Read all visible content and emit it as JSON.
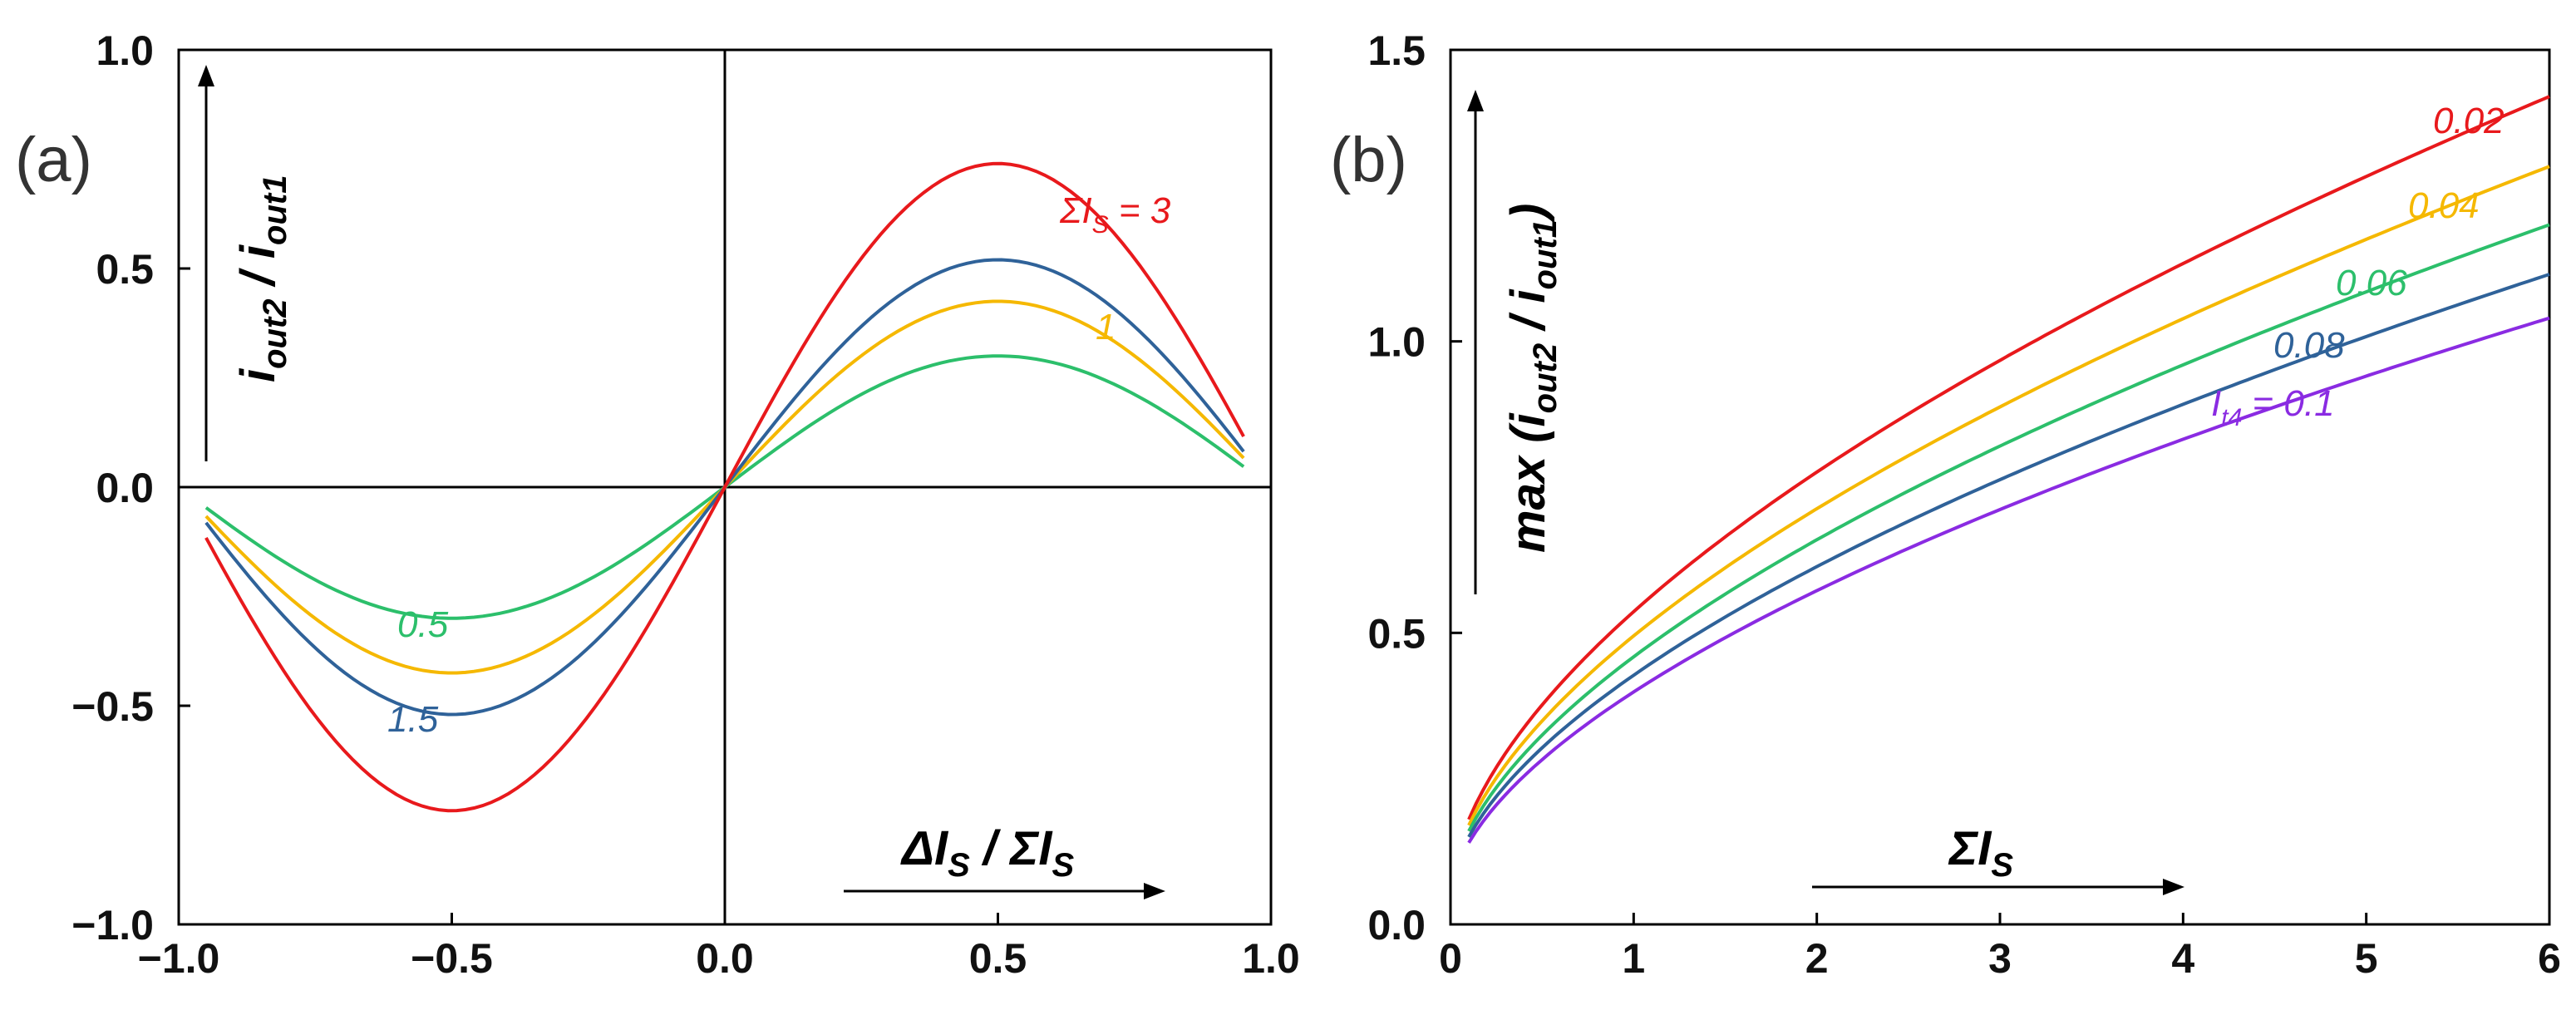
{
  "chart_data": [
    {
      "panel_label": "(a)",
      "type": "line",
      "xlim": [
        -1.0,
        1.0
      ],
      "ylim": [
        -1.0,
        1.0
      ],
      "xticks": [
        -1.0,
        -0.5,
        0.0,
        0.5,
        1.0
      ],
      "xtick_labels": [
        "−1.0",
        "−0.5",
        "0.0",
        "0.5",
        "1.0"
      ],
      "yticks": [
        -1.0,
        -0.5,
        0.0,
        0.5,
        1.0
      ],
      "ytick_labels": [
        "−1.0",
        "−0.5",
        "0.0",
        "0.5",
        "1.0"
      ],
      "ylabel": {
        "main": "i",
        "sub1": "out2",
        "mid": " / i",
        "sub2": "out1"
      },
      "xlabel": {
        "a": "ΔI",
        "a_sub": "S",
        "mid": " / ΣI",
        "b_sub": "S"
      },
      "grid": false,
      "zero_lines": true,
      "x_range": [
        -0.95,
        0.95
      ],
      "series": [
        {
          "name": "ΣI_S = 3",
          "label_main": "ΣI",
          "label_sub": "S",
          "label_tail": " = 3",
          "color": "#e8191c",
          "amplitude": 0.74
        },
        {
          "name": "1.5",
          "label_main": "1.5",
          "color": "#2f6299",
          "amplitude": 0.52
        },
        {
          "name": "1",
          "label_main": "1",
          "color": "#f5b800",
          "amplitude": 0.425
        },
        {
          "name": "0.5",
          "label_main": "0.5",
          "color": "#2cbf6b",
          "amplitude": 0.3
        }
      ]
    },
    {
      "panel_label": "(b)",
      "type": "line",
      "xlim": [
        0,
        6
      ],
      "ylim": [
        0.0,
        1.5
      ],
      "xticks": [
        0,
        1,
        2,
        3,
        4,
        5,
        6
      ],
      "xtick_labels": [
        "0",
        "1",
        "2",
        "3",
        "4",
        "5",
        "6"
      ],
      "yticks": [
        0.0,
        0.5,
        1.0,
        1.5
      ],
      "ytick_labels": [
        "0.0",
        "0.5",
        "1.0",
        "1.5"
      ],
      "ylabel": {
        "pre": "max (i",
        "sub1": "out2",
        "mid": " / i",
        "sub2": "out1",
        "post": ")"
      },
      "xlabel": {
        "a": "ΣI",
        "a_sub": "S"
      },
      "grid": false,
      "x_range": [
        0.1,
        6.0
      ],
      "series": [
        {
          "name": "0.02",
          "label_main": "0.02",
          "color": "#e8191c",
          "y_at_x_min": 0.18,
          "y_at_x_max": 1.42
        },
        {
          "name": "0.04",
          "label_main": "0.04",
          "color": "#f5b800",
          "y_at_x_min": 0.17,
          "y_at_x_max": 1.3
        },
        {
          "name": "0.06",
          "label_main": "0.06",
          "color": "#2cbf6b",
          "y_at_x_min": 0.16,
          "y_at_x_max": 1.2
        },
        {
          "name": "0.08",
          "label_main": "0.08",
          "color": "#2f6299",
          "y_at_x_min": 0.15,
          "y_at_x_max": 1.115
        },
        {
          "name": "I_t4 = 0.1",
          "label_main": "I",
          "label_sub": "t4",
          "label_tail": " = 0.1",
          "color": "#8a2be2",
          "y_at_x_min": 0.14,
          "y_at_x_max": 1.04
        }
      ]
    }
  ]
}
